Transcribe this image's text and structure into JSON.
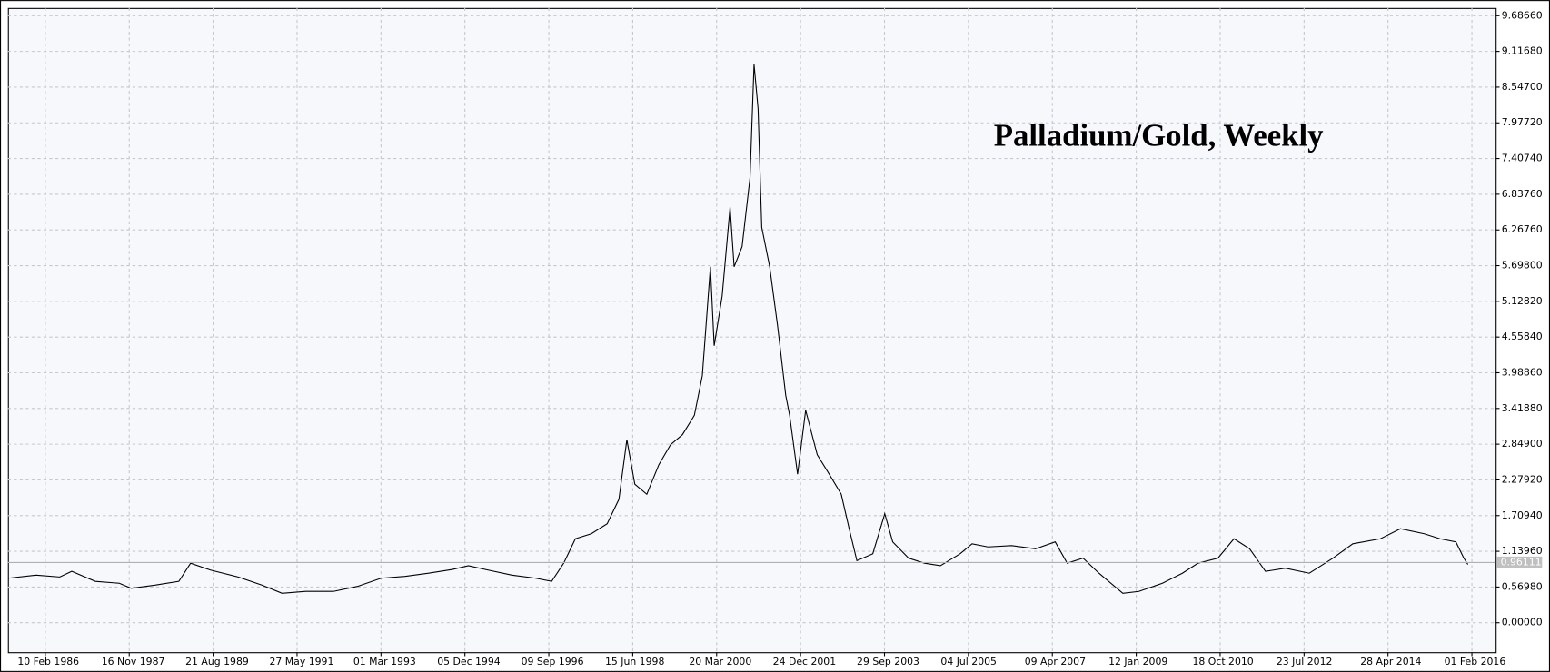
{
  "chart_data": {
    "type": "line",
    "title": "Palladium/Gold, Weekly",
    "x": [
      "1985-05",
      "1985-12",
      "1986-06",
      "1986-09",
      "1987-03",
      "1987-09",
      "1987-12",
      "1988-06",
      "1988-12",
      "1989-03",
      "1989-08",
      "1990-03",
      "1990-09",
      "1991-02",
      "1991-08",
      "1992-03",
      "1992-09",
      "1993-03",
      "1993-09",
      "1994-03",
      "1994-09",
      "1995-01",
      "1995-06",
      "1995-12",
      "1996-06",
      "1996-10",
      "1997-01",
      "1997-04",
      "1997-08",
      "1997-12",
      "1998-03",
      "1998-05",
      "1998-07",
      "1998-10",
      "1999-01",
      "1999-04",
      "1999-07",
      "1999-10",
      "1999-12",
      "2000-02",
      "2000-03",
      "2000-05",
      "2000-07",
      "2000-08",
      "2000-10",
      "2000-12",
      "2001-01",
      "2001-02",
      "2001-03",
      "2001-05",
      "2001-07",
      "2001-09",
      "2001-10",
      "2001-12",
      "2002-02",
      "2002-05",
      "2002-08",
      "2002-11",
      "2003-01",
      "2003-03",
      "2003-07",
      "2003-10",
      "2003-12",
      "2004-04",
      "2004-08",
      "2004-12",
      "2005-05",
      "2005-08",
      "2005-12",
      "2006-06",
      "2006-12",
      "2007-05",
      "2007-08",
      "2007-12",
      "2008-04",
      "2008-10",
      "2009-02",
      "2009-08",
      "2010-01",
      "2010-05",
      "2010-10",
      "2011-02",
      "2011-06",
      "2011-10",
      "2012-03",
      "2012-09",
      "2013-03",
      "2013-08",
      "2014-03",
      "2014-08",
      "2015-02",
      "2015-06",
      "2015-10",
      "2015-12",
      "2016-01"
    ],
    "series": [
      {
        "color": "#000000",
        "values": [
          0.71,
          0.76,
          0.73,
          0.82,
          0.66,
          0.63,
          0.55,
          0.6,
          0.66,
          0.95,
          0.84,
          0.73,
          0.6,
          0.47,
          0.5,
          0.5,
          0.58,
          0.71,
          0.74,
          0.79,
          0.85,
          0.91,
          0.84,
          0.76,
          0.71,
          0.66,
          0.95,
          1.34,
          1.42,
          1.58,
          1.97,
          2.92,
          2.21,
          2.05,
          2.52,
          2.84,
          3.0,
          3.31,
          3.94,
          5.68,
          4.42,
          5.21,
          6.63,
          5.68,
          6.0,
          7.1,
          8.91,
          8.2,
          6.31,
          5.68,
          4.73,
          3.63,
          3.31,
          2.37,
          3.39,
          2.68,
          2.37,
          2.05,
          1.5,
          0.99,
          1.1,
          1.74,
          1.29,
          1.03,
          0.95,
          0.91,
          1.1,
          1.26,
          1.21,
          1.23,
          1.18,
          1.29,
          0.95,
          1.03,
          0.79,
          0.47,
          0.5,
          0.63,
          0.79,
          0.95,
          1.03,
          1.34,
          1.18,
          0.82,
          0.87,
          0.79,
          1.03,
          1.26,
          1.34,
          1.5,
          1.42,
          1.34,
          1.29,
          1.03,
          0.93
        ]
      }
    ],
    "last_value": 0.96111,
    "xlim": [
      "1985-04-29",
      "2016-08-01"
    ],
    "xticks": [
      {
        "value": "1986-02-10",
        "label": "10 Feb 1986"
      },
      {
        "value": "1987-11-16",
        "label": "16 Nov 1987"
      },
      {
        "value": "1989-08-21",
        "label": "21 Aug 1989"
      },
      {
        "value": "1991-05-27",
        "label": "27 May 1991"
      },
      {
        "value": "1993-03-01",
        "label": "01 Mar 1993"
      },
      {
        "value": "1994-12-05",
        "label": "05 Dec 1994"
      },
      {
        "value": "1996-09-09",
        "label": "09 Sep 1996"
      },
      {
        "value": "1998-06-15",
        "label": "15 Jun 1998"
      },
      {
        "value": "2000-03-20",
        "label": "20 Mar 2000"
      },
      {
        "value": "2001-12-24",
        "label": "24 Dec 2001"
      },
      {
        "value": "2003-09-29",
        "label": "29 Sep 2003"
      },
      {
        "value": "2005-07-04",
        "label": "04 Jul 2005"
      },
      {
        "value": "2007-04-09",
        "label": "09 Apr 2007"
      },
      {
        "value": "2009-01-12",
        "label": "12 Jan 2009"
      },
      {
        "value": "2010-10-18",
        "label": "18 Oct 2010"
      },
      {
        "value": "2012-07-23",
        "label": "23 Jul 2012"
      },
      {
        "value": "2014-04-28",
        "label": "28 Apr 2014"
      },
      {
        "value": "2016-02-01",
        "label": "01 Feb 2016"
      }
    ],
    "ylim": [
      -0.47,
      9.81
    ],
    "yticks": [
      {
        "value": 0,
        "label": "0.00000"
      },
      {
        "value": 0.5698,
        "label": "0.56980"
      },
      {
        "value": 1.1396,
        "label": "1.13960"
      },
      {
        "value": 1.7094,
        "label": "1.70940"
      },
      {
        "value": 2.2792,
        "label": "2.27920"
      },
      {
        "value": 2.849,
        "label": "2.84900"
      },
      {
        "value": 3.4188,
        "label": "3.41880"
      },
      {
        "value": 3.9886,
        "label": "3.98860"
      },
      {
        "value": 4.5584,
        "label": "4.55840"
      },
      {
        "value": 5.1282,
        "label": "5.12820"
      },
      {
        "value": 5.698,
        "label": "5.69800"
      },
      {
        "value": 6.2676,
        "label": "6.26760"
      },
      {
        "value": 6.8376,
        "label": "6.83760"
      },
      {
        "value": 7.4074,
        "label": "7.40740"
      },
      {
        "value": 7.9772,
        "label": "7.97720"
      },
      {
        "value": 8.547,
        "label": "8.54700"
      },
      {
        "value": 9.1168,
        "label": "9.11680"
      },
      {
        "value": 9.6866,
        "label": "9.68660"
      }
    ],
    "grid": true
  }
}
